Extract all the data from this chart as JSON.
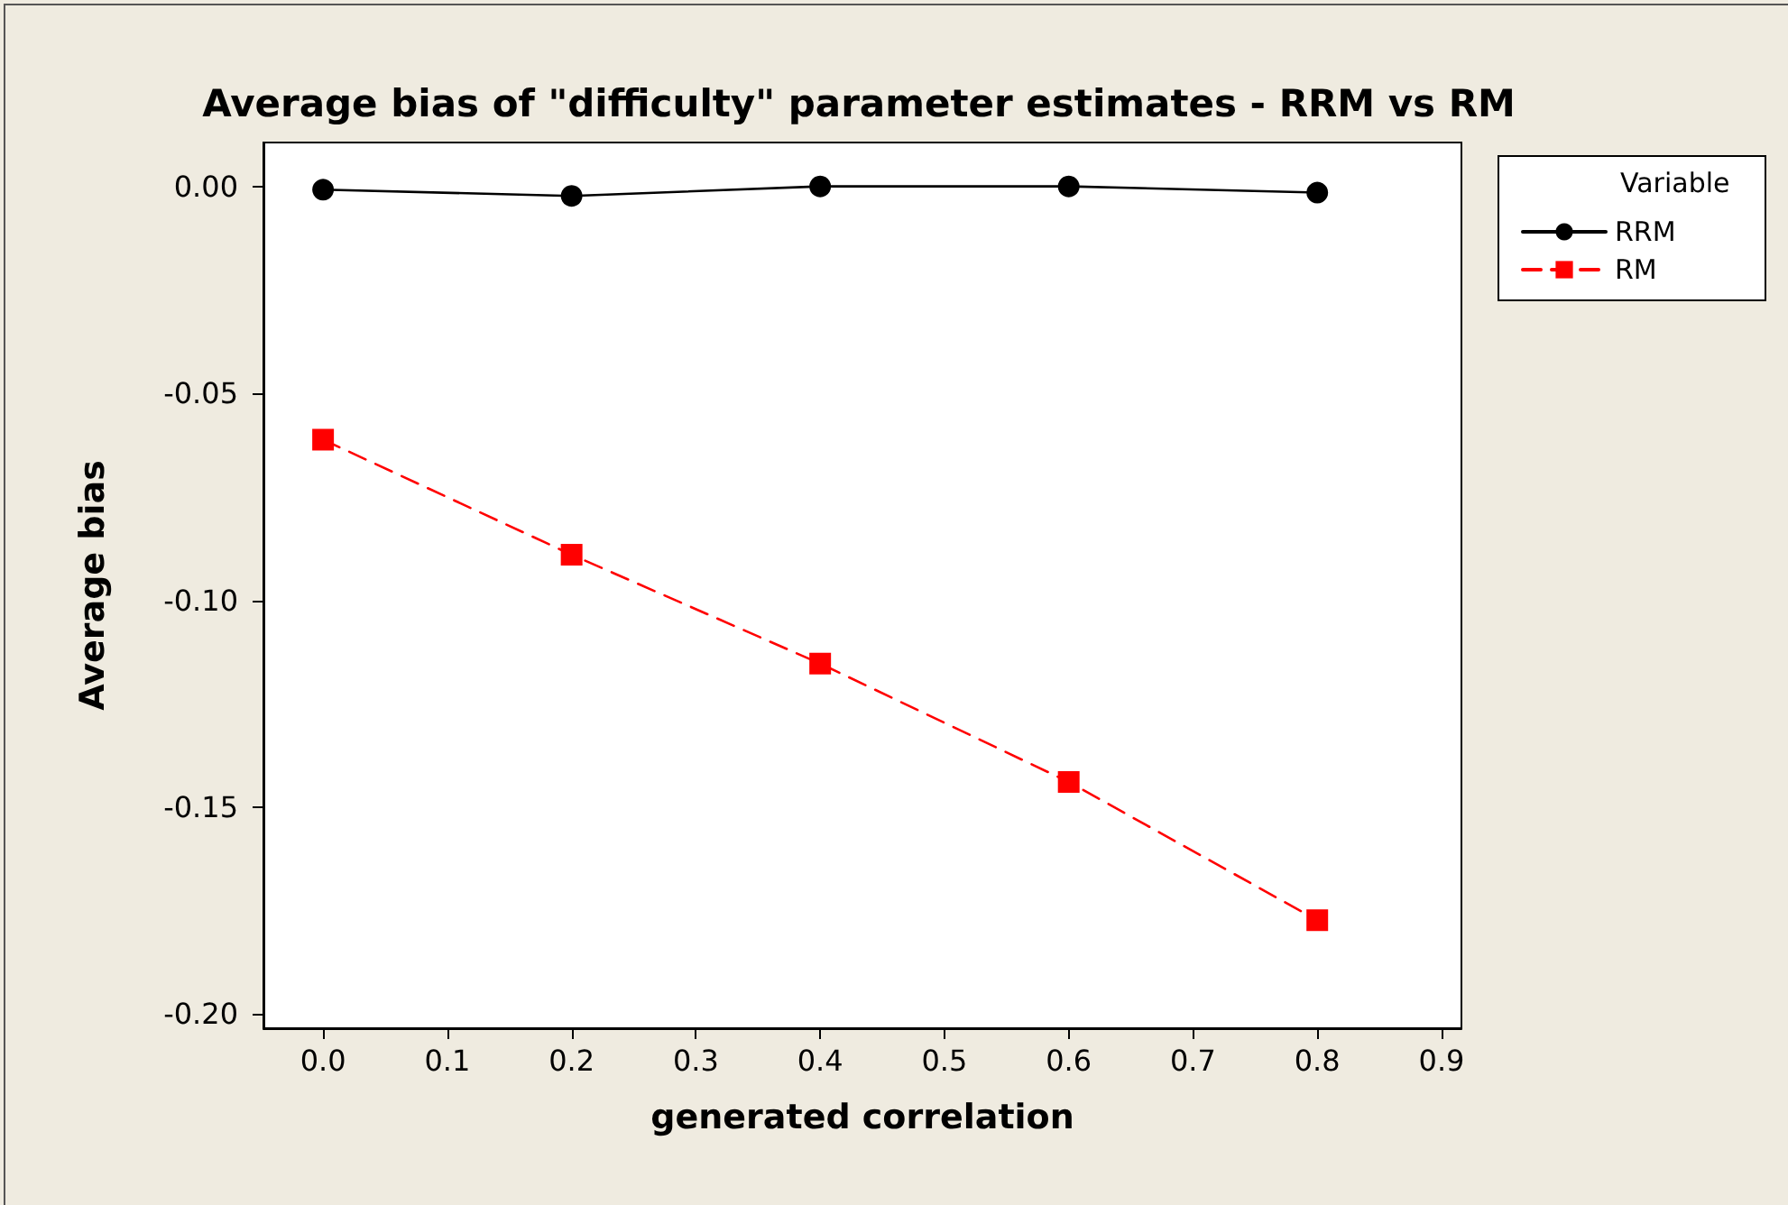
{
  "chart_data": {
    "type": "line",
    "title": "Average bias of \"difficulty\" parameter estimates - RRM vs RM",
    "xlabel": "generated correlation",
    "ylabel": "Average bias",
    "legend_title": "Variable",
    "legend": "top right",
    "grid": false,
    "x": [
      0.0,
      0.2,
      0.4,
      0.6,
      0.8
    ],
    "series": [
      {
        "name": "RRM",
        "color": "#000000",
        "marker": "circle",
        "line_style": "solid",
        "values": [
          -0.0008,
          -0.0023,
          0.0,
          0.0,
          -0.0015
        ]
      },
      {
        "name": "RM",
        "color": "#ff0000",
        "marker": "square",
        "line_style": "dashed",
        "values": [
          -0.0612,
          -0.089,
          -0.1153,
          -0.1439,
          -0.1773
        ]
      }
    ],
    "xlim": [
      -0.048,
      0.916
    ],
    "xticks": [
      {
        "value": 0,
        "label": "0.0"
      },
      0.1,
      0.2,
      0.3,
      0.4,
      0.5,
      0.6,
      0.7,
      0.8,
      0.9
    ],
    "ylim": [
      -0.2034,
      0.0106
    ],
    "yticks": [
      {
        "value": 0,
        "label": "0.00"
      },
      {
        "value": -0.05,
        "label": "-0.05"
      },
      {
        "value": -0.1,
        "label": "-0.10"
      },
      {
        "value": -0.15,
        "label": "-0.15"
      },
      {
        "value": -0.2,
        "label": "-0.20"
      }
    ]
  }
}
